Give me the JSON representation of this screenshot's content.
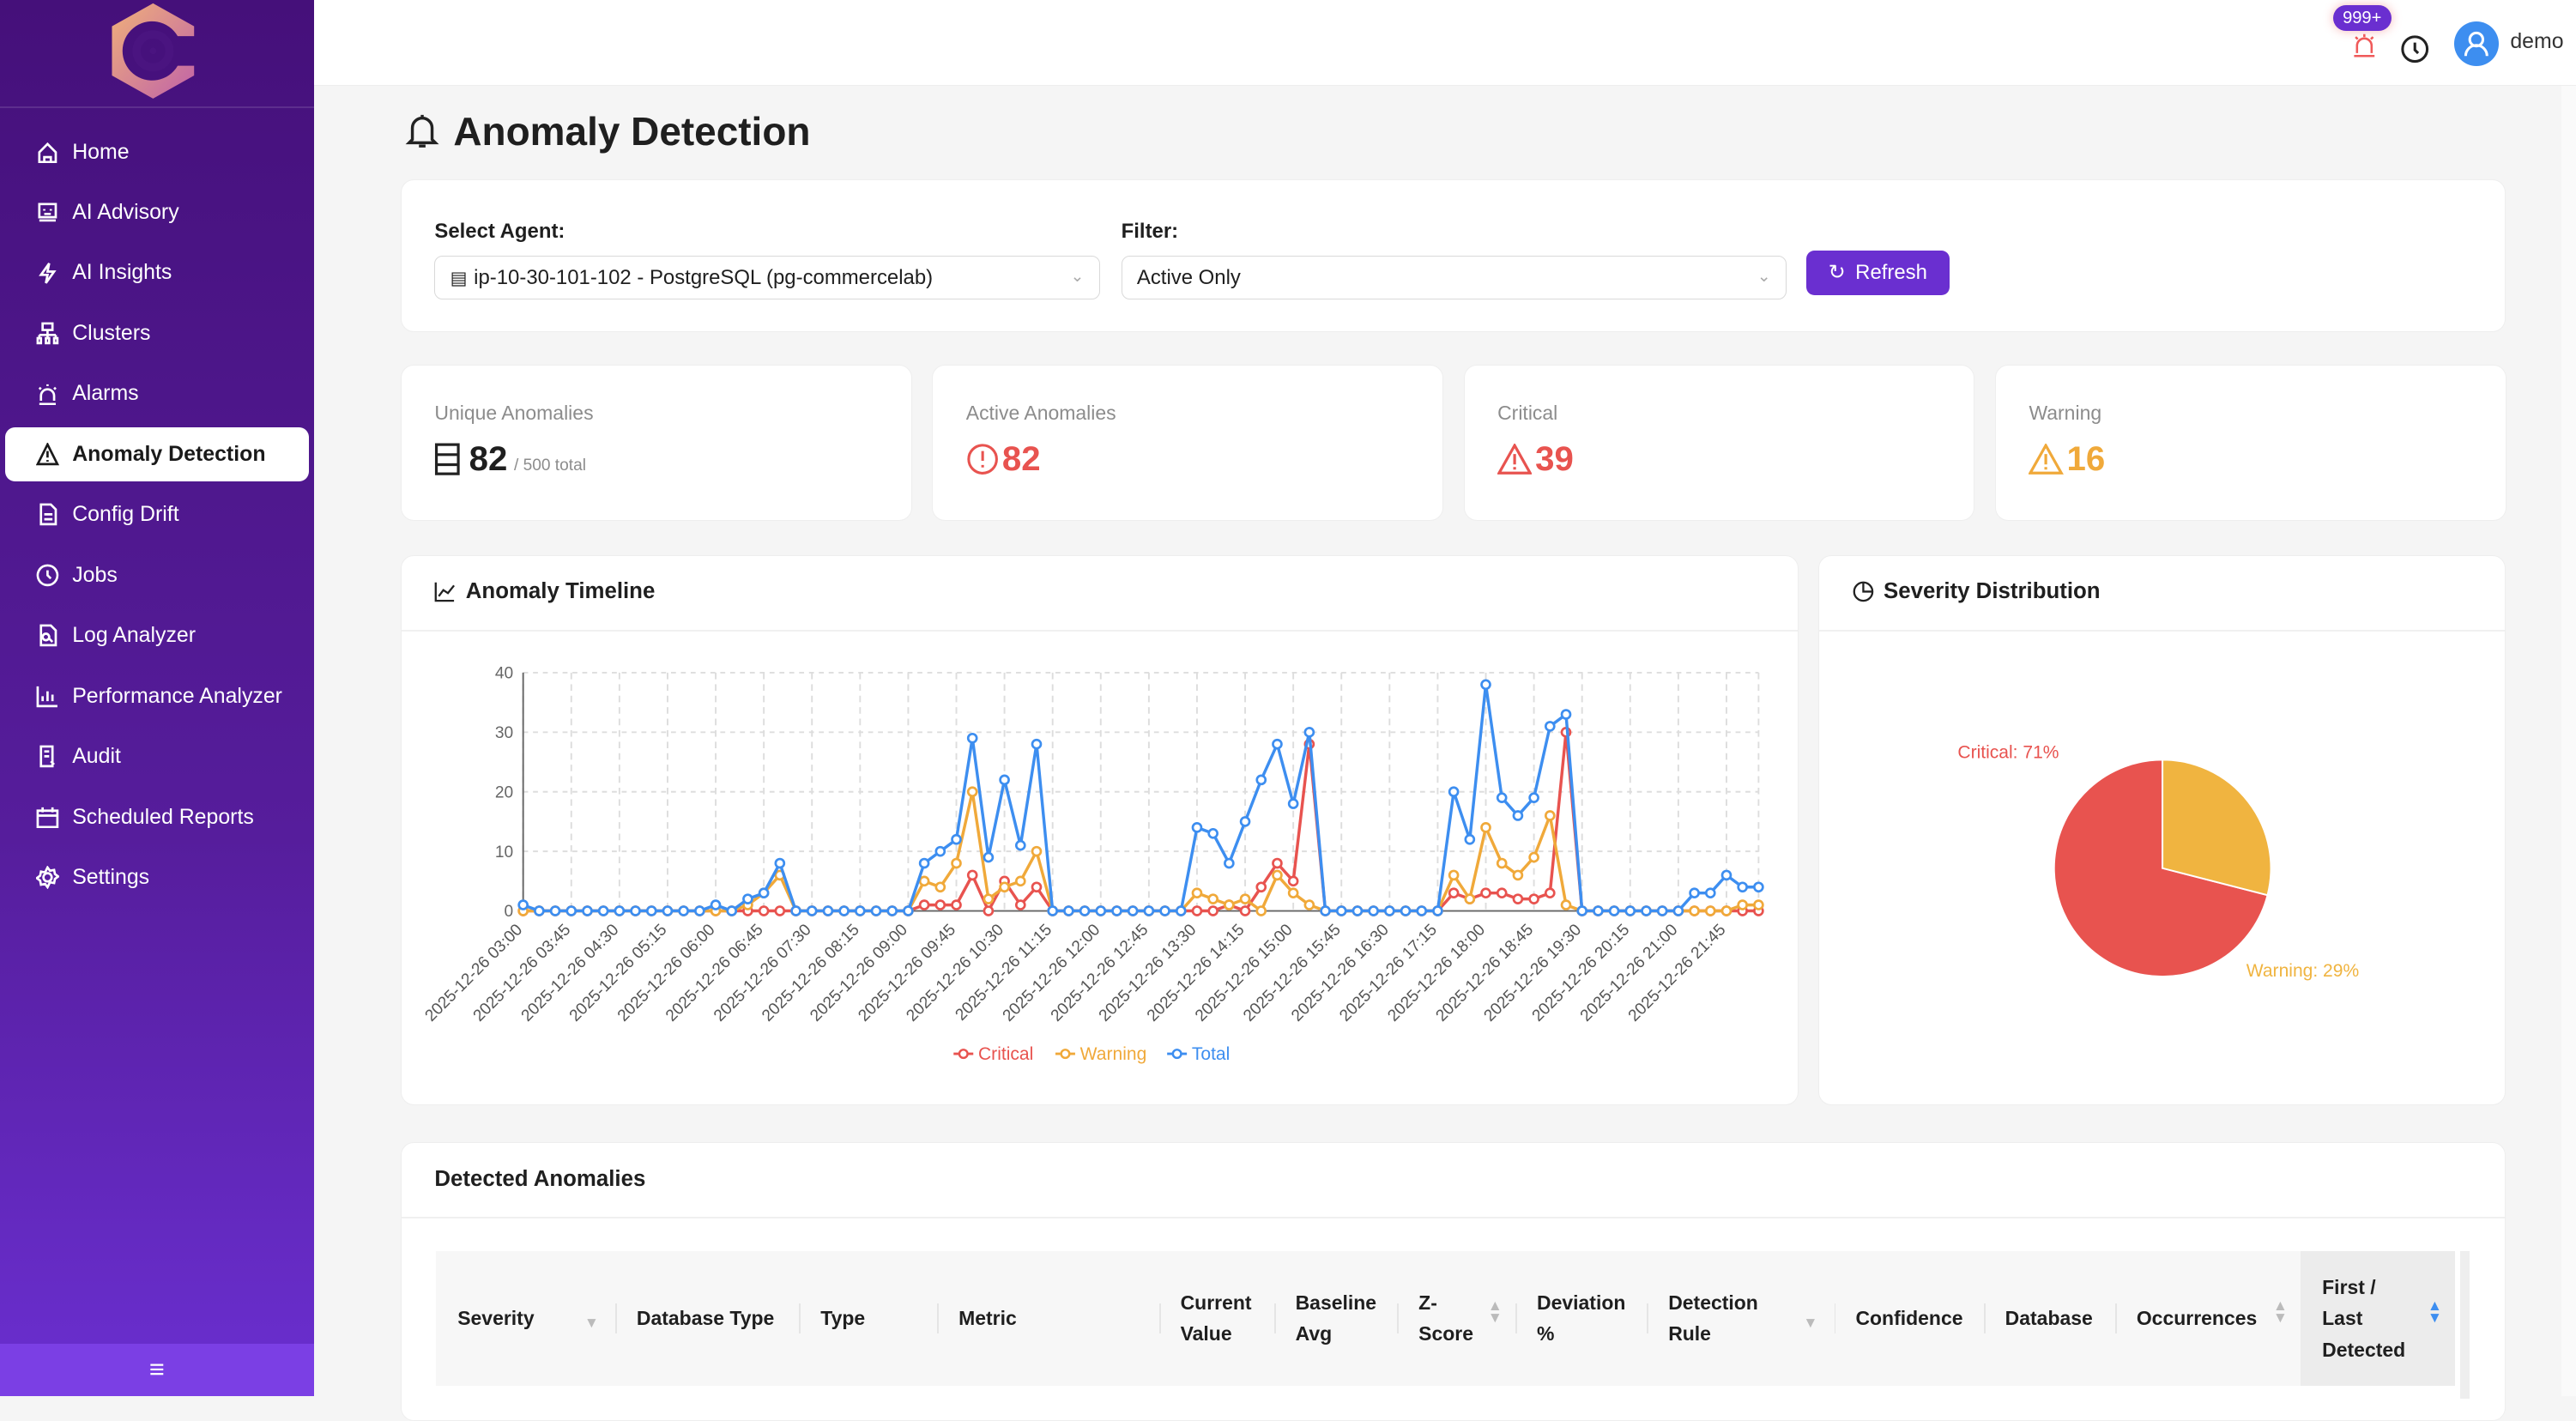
{
  "sidebar": {
    "items": [
      {
        "label": "Home",
        "icon": "home-icon"
      },
      {
        "label": "AI Advisory",
        "icon": "robot-icon"
      },
      {
        "label": "AI Insights",
        "icon": "lightning-icon"
      },
      {
        "label": "Clusters",
        "icon": "cluster-icon"
      },
      {
        "label": "Alarms",
        "icon": "alarm-icon"
      },
      {
        "label": "Anomaly Detection",
        "icon": "warning-icon",
        "active": true
      },
      {
        "label": "Config Drift",
        "icon": "file-icon"
      },
      {
        "label": "Jobs",
        "icon": "clock-icon"
      },
      {
        "label": "Log Analyzer",
        "icon": "file-search-icon"
      },
      {
        "label": "Performance Analyzer",
        "icon": "bar-chart-icon"
      },
      {
        "label": "Audit",
        "icon": "audit-icon"
      },
      {
        "label": "Scheduled Reports",
        "icon": "calendar-icon"
      },
      {
        "label": "Settings",
        "icon": "gear-icon"
      }
    ]
  },
  "header": {
    "badge": "999+",
    "user": "demo"
  },
  "page": {
    "title": "Anomaly Detection"
  },
  "filters": {
    "agent_label": "Select Agent:",
    "agent_value": "ip-10-30-101-102 - PostgreSQL (pg-commercelab)",
    "filter_label": "Filter:",
    "filter_value": "Active Only",
    "refresh": "Refresh"
  },
  "stats": [
    {
      "label": "Unique Anomalies",
      "value": "82",
      "suffix": "/ 500 total",
      "color": "#1f1f1f"
    },
    {
      "label": "Active Anomalies",
      "value": "82",
      "color": "#e8534f"
    },
    {
      "label": "Critical",
      "value": "39",
      "color": "#e8534f"
    },
    {
      "label": "Warning",
      "value": "16",
      "color": "#f0a93a"
    }
  ],
  "timeline": {
    "title": "Anomaly Timeline"
  },
  "severity": {
    "title": "Severity Distribution"
  },
  "chart_data": [
    {
      "type": "line",
      "ylim": [
        0,
        40
      ],
      "yticks": [
        0,
        10,
        20,
        30,
        40
      ],
      "grid": true,
      "legend": "bottom",
      "x": [
        "2025-12-26 03:00",
        "2025-12-26 03:15",
        "2025-12-26 03:30",
        "2025-12-26 03:45",
        "2025-12-26 04:00",
        "2025-12-26 04:15",
        "2025-12-26 04:30",
        "2025-12-26 04:45",
        "2025-12-26 05:00",
        "2025-12-26 05:15",
        "2025-12-26 05:30",
        "2025-12-26 05:45",
        "2025-12-26 06:00",
        "2025-12-26 06:15",
        "2025-12-26 06:30",
        "2025-12-26 06:45",
        "2025-12-26 07:00",
        "2025-12-26 07:15",
        "2025-12-26 07:30",
        "2025-12-26 07:45",
        "2025-12-26 08:00",
        "2025-12-26 08:15",
        "2025-12-26 08:30",
        "2025-12-26 08:45",
        "2025-12-26 09:00",
        "2025-12-26 09:15",
        "2025-12-26 09:30",
        "2025-12-26 09:45",
        "2025-12-26 10:00",
        "2025-12-26 10:15",
        "2025-12-26 10:30",
        "2025-12-26 10:45",
        "2025-12-26 11:00",
        "2025-12-26 11:15",
        "2025-12-26 11:30",
        "2025-12-26 11:45",
        "2025-12-26 12:00",
        "2025-12-26 12:15",
        "2025-12-26 12:30",
        "2025-12-26 12:45",
        "2025-12-26 13:00",
        "2025-12-26 13:15",
        "2025-12-26 13:30",
        "2025-12-26 13:45",
        "2025-12-26 14:00",
        "2025-12-26 14:15",
        "2025-12-26 14:30",
        "2025-12-26 14:45",
        "2025-12-26 15:00",
        "2025-12-26 15:15",
        "2025-12-26 15:30",
        "2025-12-26 15:45",
        "2025-12-26 16:00",
        "2025-12-26 16:15",
        "2025-12-26 16:30",
        "2025-12-26 16:45",
        "2025-12-26 17:00",
        "2025-12-26 17:15",
        "2025-12-26 17:30",
        "2025-12-26 17:45",
        "2025-12-26 18:00",
        "2025-12-26 18:15",
        "2025-12-26 18:30",
        "2025-12-26 18:45",
        "2025-12-26 19:00",
        "2025-12-26 19:15",
        "2025-12-26 19:30",
        "2025-12-26 19:45",
        "2025-12-26 20:00",
        "2025-12-26 20:15",
        "2025-12-26 20:30",
        "2025-12-26 20:45",
        "2025-12-26 21:00",
        "2025-12-26 21:15",
        "2025-12-26 21:30",
        "2025-12-26 21:45",
        "2025-12-26 22:00",
        "2025-12-26 22:15"
      ],
      "series": [
        {
          "name": "Critical",
          "color": "#e8534f",
          "values": [
            0,
            0,
            0,
            0,
            0,
            0,
            0,
            0,
            0,
            0,
            0,
            0,
            0,
            0,
            0,
            0,
            0,
            0,
            0,
            0,
            0,
            0,
            0,
            0,
            0,
            1,
            1,
            1,
            6,
            0,
            5,
            1,
            4,
            0,
            0,
            0,
            0,
            0,
            0,
            0,
            0,
            0,
            0,
            0,
            1,
            0,
            4,
            8,
            5,
            28,
            0,
            0,
            0,
            0,
            0,
            0,
            0,
            0,
            3,
            2,
            3,
            3,
            2,
            2,
            3,
            30,
            0,
            0,
            0,
            0,
            0,
            0,
            0,
            0,
            0,
            0,
            0,
            0
          ]
        },
        {
          "name": "Warning",
          "color": "#f0a93a",
          "values": [
            0,
            0,
            0,
            0,
            0,
            0,
            0,
            0,
            0,
            0,
            0,
            0,
            0,
            0,
            1,
            3,
            6,
            0,
            0,
            0,
            0,
            0,
            0,
            0,
            0,
            5,
            4,
            8,
            20,
            2,
            4,
            5,
            10,
            0,
            0,
            0,
            0,
            0,
            0,
            0,
            0,
            0,
            3,
            2,
            1,
            2,
            0,
            6,
            3,
            1,
            0,
            0,
            0,
            0,
            0,
            0,
            0,
            0,
            6,
            2,
            14,
            8,
            6,
            9,
            16,
            1,
            0,
            0,
            0,
            0,
            0,
            0,
            0,
            0,
            0,
            0,
            1,
            1
          ]
        },
        {
          "name": "Total",
          "color": "#3d8ef0",
          "values": [
            1,
            0,
            0,
            0,
            0,
            0,
            0,
            0,
            0,
            0,
            0,
            0,
            1,
            0,
            2,
            3,
            8,
            0,
            0,
            0,
            0,
            0,
            0,
            0,
            0,
            8,
            10,
            12,
            29,
            9,
            22,
            11,
            28,
            0,
            0,
            0,
            0,
            0,
            0,
            0,
            0,
            0,
            14,
            13,
            8,
            15,
            22,
            28,
            18,
            30,
            0,
            0,
            0,
            0,
            0,
            0,
            0,
            0,
            20,
            12,
            38,
            19,
            16,
            19,
            31,
            33,
            0,
            0,
            0,
            0,
            0,
            0,
            0,
            3,
            3,
            6,
            4,
            4
          ]
        }
      ]
    },
    {
      "type": "pie",
      "slices": [
        {
          "name": "Critical",
          "value": 71,
          "label": "Critical: 71%",
          "color": "#e8534f"
        },
        {
          "name": "Warning",
          "value": 29,
          "label": "Warning: 29%",
          "color": "#f0b440"
        }
      ]
    }
  ],
  "table": {
    "title": "Detected Anomalies",
    "columns": [
      "Severity",
      "Database Type",
      "Type",
      "Metric",
      "Current Value",
      "Baseline Avg",
      "Z-Score",
      "Deviation %",
      "Detection Rule",
      "Confidence",
      "Database",
      "Occurrences",
      "First / Last Detected"
    ]
  }
}
